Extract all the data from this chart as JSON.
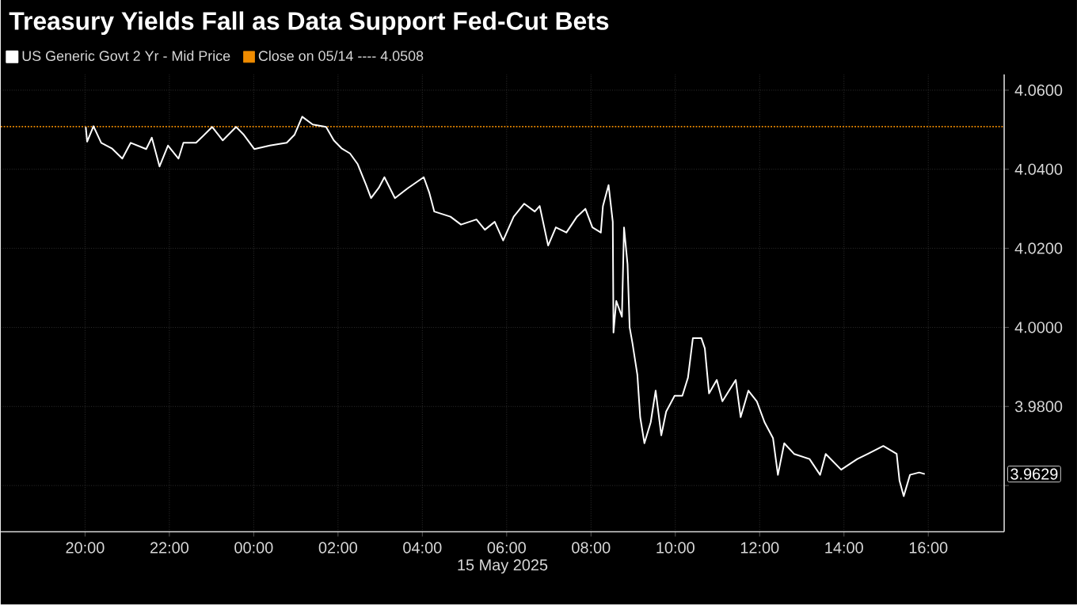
{
  "chart_data": {
    "type": "line",
    "title": "Treasury Yields Fall as Data Support Fed-Cut Bets",
    "xlabel": "15 May 2025",
    "series": [
      {
        "name": "US Generic Govt 2 Yr - Mid Price",
        "color": "#ffffff",
        "x": [
          "2025-05-14T20:01",
          "2025-05-14T20:03",
          "2025-05-14T20:12",
          "2025-05-14T20:23",
          "2025-05-14T20:38",
          "2025-05-14T20:53",
          "2025-05-14T21:05",
          "2025-05-14T21:27",
          "2025-05-14T21:35",
          "2025-05-14T21:46",
          "2025-05-14T21:58",
          "2025-05-14T22:13",
          "2025-05-14T22:20",
          "2025-05-14T22:38",
          "2025-05-14T23:01",
          "2025-05-14T23:16",
          "2025-05-14T23:35",
          "2025-05-14T23:46",
          "2025-05-15T00:01",
          "2025-05-15T00:23",
          "2025-05-15T00:47",
          "2025-05-15T00:58",
          "2025-05-15T01:09",
          "2025-05-15T01:24",
          "2025-05-15T01:43",
          "2025-05-15T01:54",
          "2025-05-15T02:05",
          "2025-05-15T02:17",
          "2025-05-15T02:28",
          "2025-05-15T02:40",
          "2025-05-15T02:47",
          "2025-05-15T02:58",
          "2025-05-15T03:06",
          "2025-05-15T03:21",
          "2025-05-15T03:40",
          "2025-05-15T04:02",
          "2025-05-15T04:10",
          "2025-05-15T04:17",
          "2025-05-15T04:40",
          "2025-05-15T04:55",
          "2025-05-15T05:17",
          "2025-05-15T05:29",
          "2025-05-15T05:43",
          "2025-05-15T05:55",
          "2025-05-15T06:10",
          "2025-05-15T06:25",
          "2025-05-15T06:40",
          "2025-05-15T06:47",
          "2025-05-15T06:59",
          "2025-05-15T07:10",
          "2025-05-15T07:25",
          "2025-05-15T07:40",
          "2025-05-15T07:52",
          "2025-05-15T08:02",
          "2025-05-15T08:14",
          "2025-05-15T08:17",
          "2025-05-15T08:25",
          "2025-05-15T08:31",
          "2025-05-15T08:32",
          "2025-05-15T08:36",
          "2025-05-15T08:44",
          "2025-05-15T08:47",
          "2025-05-15T08:52",
          "2025-05-15T08:55",
          "2025-05-15T08:59",
          "2025-05-15T09:06",
          "2025-05-15T09:10",
          "2025-05-15T09:16",
          "2025-05-15T09:25",
          "2025-05-15T09:32",
          "2025-05-15T09:40",
          "2025-05-15T09:47",
          "2025-05-15T09:59",
          "2025-05-15T10:10",
          "2025-05-15T10:18",
          "2025-05-15T10:25",
          "2025-05-15T10:37",
          "2025-05-15T10:42",
          "2025-05-15T10:48",
          "2025-05-15T10:59",
          "2025-05-15T11:07",
          "2025-05-15T11:26",
          "2025-05-15T11:33",
          "2025-05-15T11:44",
          "2025-05-15T11:56",
          "2025-05-15T12:07",
          "2025-05-15T12:19",
          "2025-05-15T12:26",
          "2025-05-15T12:35",
          "2025-05-15T12:49",
          "2025-05-15T13:11",
          "2025-05-15T13:26",
          "2025-05-15T13:34",
          "2025-05-15T13:56",
          "2025-05-15T14:19",
          "2025-05-15T14:34",
          "2025-05-15T14:56",
          "2025-05-15T15:15",
          "2025-05-15T15:19",
          "2025-05-15T15:25",
          "2025-05-15T15:34",
          "2025-05-15T15:47",
          "2025-05-15T15:55"
        ],
        "values": [
          4.0507,
          4.047,
          4.0509,
          4.0467,
          4.0453,
          4.0427,
          4.0467,
          4.0451,
          4.048,
          4.0407,
          4.046,
          4.0427,
          4.0467,
          4.0467,
          4.0507,
          4.0473,
          4.0507,
          4.0487,
          4.0451,
          4.046,
          4.0467,
          4.0487,
          4.0533,
          4.0513,
          4.0507,
          4.0473,
          4.0453,
          4.044,
          4.0413,
          4.036,
          4.0327,
          4.0353,
          4.038,
          4.0327,
          4.0353,
          4.038,
          4.034,
          4.0293,
          4.028,
          4.026,
          4.0273,
          4.0247,
          4.0267,
          4.022,
          4.028,
          4.0313,
          4.0293,
          4.0307,
          4.0207,
          4.0253,
          4.024,
          4.028,
          4.03,
          4.0253,
          4.024,
          4.0307,
          4.036,
          4.0267,
          3.9987,
          4.0067,
          4.0027,
          4.0253,
          4.016,
          4.0,
          3.996,
          3.988,
          3.9773,
          3.9707,
          3.976,
          3.984,
          3.9727,
          3.9787,
          3.9827,
          3.9827,
          3.9873,
          3.9973,
          3.9973,
          3.9947,
          3.9833,
          3.9867,
          3.9813,
          3.9867,
          3.9773,
          3.984,
          3.9813,
          3.976,
          3.972,
          3.9627,
          3.9707,
          3.968,
          3.9667,
          3.9627,
          3.968,
          3.964,
          3.9667,
          3.968,
          3.97,
          3.968,
          3.9613,
          3.9573,
          3.9627,
          3.9633,
          3.9629
        ]
      }
    ],
    "xlim": [
      "2025-05-14T18:00",
      "2025-05-15T17:48"
    ],
    "ylim": [
      3.9483,
      4.064
    ],
    "xticks": [
      {
        "value": "2025-05-14T20:00",
        "label": "20:00"
      },
      {
        "value": "2025-05-14T22:00",
        "label": "22:00"
      },
      {
        "value": "2025-05-15T00:00",
        "label": "00:00"
      },
      {
        "value": "2025-05-15T02:00",
        "label": "02:00"
      },
      {
        "value": "2025-05-15T04:00",
        "label": "04:00"
      },
      {
        "value": "2025-05-15T06:00",
        "label": "06:00"
      },
      {
        "value": "2025-05-15T08:00",
        "label": "08:00"
      },
      {
        "value": "2025-05-15T10:00",
        "label": "10:00"
      },
      {
        "value": "2025-05-15T12:00",
        "label": "12:00"
      },
      {
        "value": "2025-05-15T14:00",
        "label": "14:00"
      },
      {
        "value": "2025-05-15T16:00",
        "label": "16:00"
      }
    ],
    "yticks": [
      {
        "value": 3.96,
        "label": null
      },
      {
        "value": 3.98,
        "label": "3.9800"
      },
      {
        "value": 4.0,
        "label": "4.0000"
      },
      {
        "value": 4.02,
        "label": "4.0200"
      },
      {
        "value": 4.04,
        "label": "4.0400"
      },
      {
        "value": 4.06,
        "label": "4.0600"
      }
    ],
    "ref_lines": [
      {
        "axis": "y",
        "value": 4.0508,
        "label": "Close on 05/14 ---- 4.0508",
        "color": "#f08c00",
        "line_style": "dotted"
      }
    ],
    "annotations": [
      "3.9629"
    ],
    "grid": true,
    "legend": "top left"
  }
}
